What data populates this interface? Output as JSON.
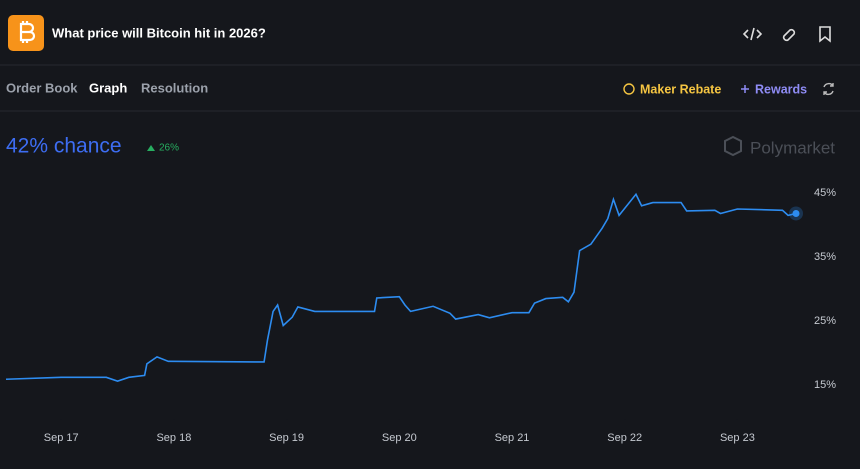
{
  "header": {
    "title": "What price will Bitcoin hit in 2026?"
  },
  "tabs": [
    "Order Book",
    "Graph",
    "Resolution"
  ],
  "actions": {
    "maker_rebate": "Maker Rebate",
    "rewards": "Rewards"
  },
  "summary": {
    "chance": "42% chance",
    "change": "26%"
  },
  "watermark": "Polymarket",
  "chart_data": {
    "type": "line",
    "x": [
      16.51,
      17.0,
      17.4,
      17.5,
      17.6,
      17.74,
      17.76,
      17.85,
      17.95,
      18.8,
      18.83,
      18.88,
      18.92,
      18.97,
      19.05,
      19.1,
      19.25,
      19.78,
      19.8,
      20.0,
      20.05,
      20.1,
      20.3,
      20.45,
      20.5,
      20.7,
      20.8,
      21.0,
      21.15,
      21.2,
      21.3,
      21.45,
      21.5,
      21.55,
      21.6,
      21.7,
      21.8,
      21.85,
      21.9,
      21.95,
      22.1,
      22.15,
      22.25,
      22.5,
      22.55,
      22.8,
      22.85,
      23.0,
      23.4,
      23.45,
      23.52
    ],
    "series": [
      {
        "name": "Yes",
        "color": "#2d8cf0",
        "values": [
          15.9,
          16.2,
          16.2,
          15.6,
          16.2,
          16.5,
          18.3,
          19.4,
          18.7,
          18.6,
          22.0,
          26.5,
          27.5,
          24.3,
          25.6,
          27.2,
          26.5,
          26.5,
          28.6,
          28.8,
          27.5,
          26.5,
          27.3,
          26.2,
          25.3,
          26.0,
          25.5,
          26.3,
          26.3,
          27.8,
          28.5,
          28.7,
          28.0,
          29.5,
          36.0,
          37.0,
          39.5,
          41.0,
          44.0,
          41.5,
          44.8,
          43.0,
          43.5,
          43.5,
          42.2,
          42.3,
          41.8,
          42.5,
          42.3,
          41.5,
          41.8
        ]
      }
    ],
    "xlim": [
      16.51,
      23.52
    ],
    "xticks": [
      {
        "value": 17,
        "label": "Sep 17"
      },
      {
        "value": 18,
        "label": "Sep 18"
      },
      {
        "value": 19,
        "label": "Sep 19"
      },
      {
        "value": 20,
        "label": "Sep 20"
      },
      {
        "value": 21,
        "label": "Sep 21"
      },
      {
        "value": 22,
        "label": "Sep 22"
      },
      {
        "value": 23,
        "label": "Sep 23"
      }
    ],
    "ylim": [
      10,
      48
    ],
    "yticks": [
      {
        "value": 15,
        "label": "15%"
      },
      {
        "value": 25,
        "label": "25%"
      },
      {
        "value": 35,
        "label": "35%"
      },
      {
        "value": 45,
        "label": "45%"
      }
    ]
  }
}
